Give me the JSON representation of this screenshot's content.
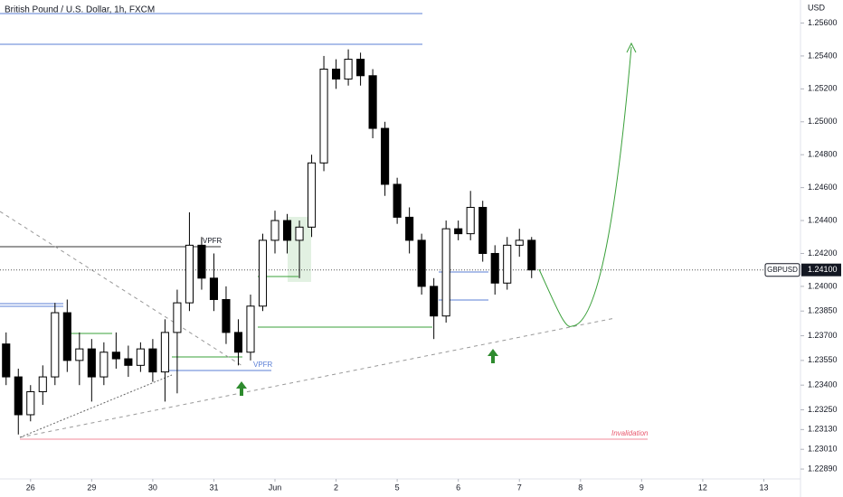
{
  "chart_data": {
    "type": "candlestick",
    "title": "British Pound / U.S. Dollar, 1h, FXCM",
    "y_axis_label": "USD",
    "symbol": "GBPUSD",
    "last_price": {
      "value": 1.241,
      "label": "1.24100"
    },
    "up_color": "#ffffff",
    "down_color": "#000000",
    "annotations": [
      "VPFR",
      "VPFR",
      "Invalidation"
    ],
    "xlim": [
      -0.5,
      12.6
    ],
    "xticks": [
      {
        "value": 0,
        "label": "26"
      },
      {
        "value": 1,
        "label": "29"
      },
      {
        "value": 2,
        "label": "30"
      },
      {
        "value": 3,
        "label": "31"
      },
      {
        "value": 4,
        "label": "Jun"
      },
      {
        "value": 5,
        "label": "2"
      },
      {
        "value": 6,
        "label": "5"
      },
      {
        "value": 7,
        "label": "6"
      },
      {
        "value": 8,
        "label": "7"
      },
      {
        "value": 9,
        "label": "8"
      },
      {
        "value": 10,
        "label": "9"
      },
      {
        "value": 11,
        "label": "12"
      },
      {
        "value": 12,
        "label": "13"
      }
    ],
    "ylim": [
      1.2283,
      1.2574
    ],
    "yticks": [
      {
        "value": 1.256,
        "label": "1.25600"
      },
      {
        "value": 1.254,
        "label": "1.25400"
      },
      {
        "value": 1.252,
        "label": "1.25200"
      },
      {
        "value": 1.25,
        "label": "1.25000"
      },
      {
        "value": 1.248,
        "label": "1.24800"
      },
      {
        "value": 1.246,
        "label": "1.24600"
      },
      {
        "value": 1.244,
        "label": "1.24400"
      },
      {
        "value": 1.242,
        "label": "1.24200"
      },
      {
        "value": 1.24,
        "label": "1.24000"
      },
      {
        "value": 1.2385,
        "label": "1.23850"
      },
      {
        "value": 1.237,
        "label": "1.23700"
      },
      {
        "value": 1.2355,
        "label": "1.23550"
      },
      {
        "value": 1.234,
        "label": "1.23400"
      },
      {
        "value": 1.2325,
        "label": "1.23250"
      },
      {
        "value": 1.2313,
        "label": "1.23130"
      },
      {
        "value": 1.2301,
        "label": "1.23010"
      },
      {
        "value": 1.2289,
        "label": "1.22890"
      }
    ],
    "x": [
      -0.4,
      -0.2,
      0,
      0.2,
      0.4,
      0.6,
      0.8,
      1,
      1.2,
      1.4,
      1.6,
      1.8,
      2,
      2.2,
      2.4,
      2.6,
      2.8,
      3,
      3.2,
      3.4,
      3.6,
      3.8,
      4,
      4.2,
      4.4,
      4.6,
      4.8,
      5,
      5.2,
      5.4,
      5.6,
      5.8,
      6,
      6.2,
      6.4,
      6.6,
      6.8,
      7,
      7.2,
      7.4,
      7.6,
      7.8,
      8,
      8.2
    ],
    "open": [
      1.2365,
      1.2345,
      1.2322,
      1.2336,
      1.2345,
      1.2384,
      1.2355,
      1.2362,
      1.2345,
      1.236,
      1.2356,
      1.2352,
      1.2362,
      1.2348,
      1.2372,
      1.239,
      1.2425,
      1.2405,
      1.2392,
      1.2372,
      1.236,
      1.2388,
      1.2428,
      1.244,
      1.2428,
      1.2436,
      1.2475,
      1.2532,
      1.2526,
      1.2538,
      1.2528,
      1.2496,
      1.2462,
      1.2442,
      1.2428,
      1.24,
      1.2382,
      1.2435,
      1.2432,
      1.2448,
      1.242,
      1.2402,
      1.2425,
      1.2428
    ],
    "high": [
      1.2372,
      1.235,
      1.234,
      1.2352,
      1.239,
      1.2392,
      1.2372,
      1.2368,
      1.2366,
      1.2372,
      1.2364,
      1.2366,
      1.2368,
      1.238,
      1.2398,
      1.2445,
      1.243,
      1.242,
      1.24,
      1.238,
      1.2395,
      1.2432,
      1.2446,
      1.2444,
      1.244,
      1.248,
      1.254,
      1.2538,
      1.2544,
      1.2542,
      1.2532,
      1.25,
      1.2466,
      1.2448,
      1.2432,
      1.2405,
      1.244,
      1.244,
      1.2458,
      1.2452,
      1.2425,
      1.243,
      1.2435,
      1.243
    ],
    "low": [
      1.234,
      1.231,
      1.2318,
      1.2328,
      1.234,
      1.2348,
      1.234,
      1.233,
      1.234,
      1.235,
      1.2345,
      1.2348,
      1.2342,
      1.233,
      1.2335,
      1.2385,
      1.2398,
      1.2385,
      1.2365,
      1.2352,
      1.2355,
      1.2385,
      1.242,
      1.242,
      1.2405,
      1.243,
      1.247,
      1.252,
      1.2522,
      1.2522,
      1.249,
      1.2455,
      1.2438,
      1.242,
      1.2395,
      1.2368,
      1.2378,
      1.2428,
      1.2428,
      1.2415,
      1.2395,
      1.2398,
      1.2418,
      1.2405
    ],
    "close": [
      1.2345,
      1.2322,
      1.2336,
      1.2345,
      1.2384,
      1.2355,
      1.2362,
      1.2345,
      1.236,
      1.2356,
      1.2352,
      1.2362,
      1.2348,
      1.2372,
      1.239,
      1.2425,
      1.2405,
      1.2392,
      1.2372,
      1.236,
      1.2388,
      1.2428,
      1.244,
      1.2428,
      1.2436,
      1.2475,
      1.2532,
      1.2526,
      1.2538,
      1.2528,
      1.2496,
      1.2462,
      1.2442,
      1.2428,
      1.24,
      1.2382,
      1.2435,
      1.2432,
      1.2448,
      1.242,
      1.2402,
      1.2425,
      1.2428,
      1.241
    ]
  }
}
